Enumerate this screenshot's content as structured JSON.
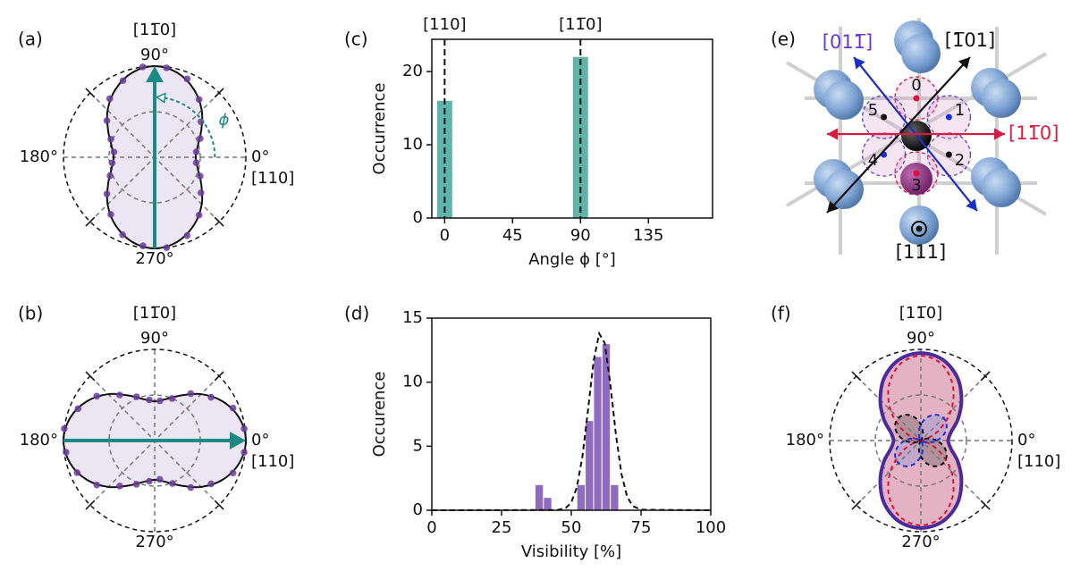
{
  "chart_data": [
    {
      "type": "polar",
      "label": "(a)",
      "xticks": [
        {
          "value": 0,
          "label": "0°"
        },
        {
          "value": 90,
          "label": "90°"
        },
        {
          "value": 180,
          "label": "180°"
        },
        {
          "value": 270,
          "label": "270°"
        }
      ],
      "direction_labels": [
        {
          "value": 0,
          "label": "[110]"
        },
        {
          "value": 90,
          "label": "[11̅0]"
        }
      ],
      "ylim": [
        0,
        1
      ],
      "yticks": [
        0.5,
        1
      ],
      "series": [
        {
          "kind": "line",
          "color": "#111111",
          "fill": "#ece6f4",
          "x": [
            0,
            15,
            30,
            45,
            60,
            75,
            90,
            105,
            120,
            135,
            150,
            165,
            180,
            195,
            210,
            225,
            240,
            255,
            270,
            285,
            300,
            315,
            330,
            345
          ],
          "values": [
            0.45,
            0.49,
            0.59,
            0.73,
            0.86,
            0.96,
            1,
            0.96,
            0.86,
            0.73,
            0.59,
            0.49,
            0.45,
            0.49,
            0.59,
            0.73,
            0.86,
            0.96,
            1,
            0.96,
            0.86,
            0.73,
            0.59,
            0.49
          ]
        },
        {
          "kind": "points",
          "color": "#6a3d9a",
          "x": [
            7.5,
            22.5,
            37.5,
            52.5,
            67.5,
            82.5,
            97.5,
            112.5,
            127.5,
            142.5,
            157.5,
            172.5,
            187.5,
            202.5,
            217.5,
            232.5,
            247.5,
            262.5,
            277.5,
            292.5,
            307.5,
            322.5,
            337.5,
            352.5
          ],
          "values": [
            0.46,
            0.54,
            0.64,
            0.8,
            0.93,
            0.99,
            1.0,
            0.91,
            0.81,
            0.66,
            0.52,
            0.45,
            0.47,
            0.53,
            0.66,
            0.79,
            0.92,
            0.98,
            1.0,
            0.93,
            0.8,
            0.64,
            0.54,
            0.46
          ]
        }
      ],
      "arrow": {
        "angle": 90,
        "color": "#1b8a84"
      },
      "annotation": {
        "text": "ϕ",
        "color": "#1b8a84"
      }
    },
    {
      "type": "polar",
      "label": "(b)",
      "xticks": [
        {
          "value": 0,
          "label": "0°"
        },
        {
          "value": 90,
          "label": "90°"
        },
        {
          "value": 180,
          "label": "180°"
        },
        {
          "value": 270,
          "label": "270°"
        }
      ],
      "direction_labels": [
        {
          "value": 0,
          "label": "[110]"
        },
        {
          "value": 90,
          "label": "[11̅0]"
        }
      ],
      "ylim": [
        0,
        1
      ],
      "yticks": [
        0.5,
        1
      ],
      "series": [
        {
          "kind": "line",
          "color": "#111111",
          "fill": "#ece6f4",
          "x": [
            0,
            15,
            30,
            45,
            60,
            75,
            90,
            105,
            120,
            135,
            150,
            165,
            180,
            195,
            210,
            225,
            240,
            255,
            270,
            285,
            300,
            315,
            330,
            345
          ],
          "values": [
            1,
            0.96,
            0.86,
            0.72,
            0.57,
            0.47,
            0.43,
            0.47,
            0.57,
            0.72,
            0.86,
            0.96,
            1,
            0.96,
            0.86,
            0.72,
            0.57,
            0.47,
            0.43,
            0.47,
            0.57,
            0.72,
            0.86,
            0.96
          ]
        },
        {
          "kind": "points",
          "color": "#6a3d9a",
          "x": [
            7.5,
            22.5,
            37.5,
            52.5,
            67.5,
            82.5,
            97.5,
            112.5,
            127.5,
            142.5,
            157.5,
            172.5,
            187.5,
            202.5,
            217.5,
            232.5,
            247.5,
            262.5,
            277.5,
            292.5,
            307.5,
            322.5,
            337.5,
            352.5
          ],
          "values": [
            0.99,
            0.93,
            0.78,
            0.65,
            0.5,
            0.44,
            0.45,
            0.52,
            0.63,
            0.8,
            0.91,
            1.0,
            0.98,
            0.92,
            0.8,
            0.63,
            0.52,
            0.45,
            0.43,
            0.51,
            0.65,
            0.78,
            0.93,
            0.99
          ]
        }
      ],
      "arrow": {
        "angle": 0,
        "color": "#1b8a84"
      }
    },
    {
      "type": "bar",
      "label": "(c)",
      "xlabel": "Angle ϕ [°]",
      "ylabel": "Occurrence",
      "x": [
        0,
        90
      ],
      "values": [
        16,
        22
      ],
      "color": "#5fb3a8",
      "xlim": [
        -8.5,
        177.5
      ],
      "xticks": [
        0,
        45,
        90,
        135
      ],
      "ylim": [
        0,
        24.4
      ],
      "yticks": [
        0,
        10,
        20
      ],
      "reference_lines": [
        {
          "value": 0,
          "label": "[110]"
        },
        {
          "value": 90,
          "label": "[11̅0]"
        }
      ]
    },
    {
      "type": "histogram",
      "label": "(d)",
      "xlabel": "Visibility [%]",
      "ylabel": "Occurence",
      "bins": [
        37,
        40,
        43,
        46,
        49,
        52,
        55,
        58,
        61,
        64,
        67
      ],
      "values": [
        2,
        1,
        0,
        0,
        0,
        2,
        7,
        12,
        13,
        2
      ],
      "color": "#8e6bbf",
      "fit": {
        "x": [
          0,
          45,
          48,
          50,
          52,
          54,
          56,
          58,
          60,
          62,
          64,
          66,
          68,
          70,
          72,
          75,
          100
        ],
        "values": [
          0,
          0.02,
          0.17,
          0.61,
          1.79,
          4.2,
          7.83,
          11.65,
          13.8,
          13.04,
          9.83,
          5.9,
          2.82,
          1.07,
          0.33,
          0.04,
          0
        ]
      },
      "xlim": [
        0,
        100
      ],
      "xticks": [
        0,
        25,
        50,
        75,
        100
      ],
      "ylim": [
        0,
        15
      ],
      "yticks": [
        0,
        5,
        10,
        15
      ]
    },
    {
      "type": "diagram",
      "label": "(e)",
      "directions": [
        {
          "label": "[011̅]",
          "color": "#1a2fc4",
          "label_color": "#6b35d0"
        },
        {
          "label": "[1̅01]",
          "color": "#111111",
          "label_color": "#111111"
        },
        {
          "label": "[11̅0]",
          "color": "#d81b43",
          "label_color": "#d81b43"
        },
        {
          "label": "[111]",
          "color": "#111111",
          "label_color": "#111111"
        }
      ],
      "sites": [
        "0",
        "1",
        "2",
        "3",
        "4",
        "5"
      ]
    },
    {
      "type": "polar",
      "label": "(f)",
      "xticks": [
        {
          "value": 0,
          "label": "0°"
        },
        {
          "value": 90,
          "label": "90°"
        },
        {
          "value": 180,
          "label": "180°"
        },
        {
          "value": 270,
          "label": "270°"
        }
      ],
      "direction_labels": [
        {
          "value": 0,
          "label": "[110]"
        },
        {
          "value": 90,
          "label": "[11̅0]"
        }
      ],
      "ylim": [
        0,
        1
      ],
      "yticks": [
        0.5,
        1
      ],
      "series": [
        {
          "kind": "line",
          "color": "#4b2a9a",
          "fill": "#e3b3c3",
          "width": 4,
          "x": [
            0,
            15,
            30,
            45,
            60,
            75,
            90,
            105,
            120,
            135,
            150,
            165,
            180,
            195,
            210,
            225,
            240,
            255,
            270,
            285,
            300,
            315,
            330,
            345
          ],
          "values": [
            0.3,
            0.34,
            0.47,
            0.63,
            0.8,
            0.92,
            0.96,
            0.92,
            0.8,
            0.63,
            0.47,
            0.34,
            0.3,
            0.34,
            0.47,
            0.63,
            0.8,
            0.92,
            0.96,
            0.92,
            0.8,
            0.63,
            0.47,
            0.34
          ]
        },
        {
          "kind": "line",
          "color": "#e0103a",
          "dash": true,
          "x": [
            0,
            15,
            30,
            45,
            60,
            75,
            90,
            105,
            120,
            135,
            150,
            165,
            180,
            195,
            210,
            225,
            240,
            255,
            270,
            285,
            300,
            315,
            330,
            345
          ],
          "values": [
            0,
            0.06,
            0.23,
            0.47,
            0.7,
            0.87,
            0.93,
            0.87,
            0.7,
            0.47,
            0.23,
            0.06,
            0,
            0.06,
            0.23,
            0.47,
            0.7,
            0.87,
            0.93,
            0.87,
            0.7,
            0.47,
            0.23,
            0.06
          ]
        },
        {
          "kind": "line",
          "color": "#111111",
          "fill": "rgba(70,70,70,0.3)",
          "dash": true,
          "x": [
            0,
            15,
            30,
            45,
            60,
            75,
            90,
            105,
            120,
            135,
            150,
            165,
            180,
            195,
            210,
            225,
            240,
            255,
            270,
            285,
            300,
            315,
            330,
            345
          ],
          "values": [
            0.175,
            0.088,
            0.023,
            0,
            0.023,
            0.088,
            0.175,
            0.263,
            0.327,
            0.35,
            0.327,
            0.263,
            0.175,
            0.088,
            0.023,
            0,
            0.023,
            0.088,
            0.175,
            0.263,
            0.327,
            0.35,
            0.327,
            0.263
          ]
        },
        {
          "kind": "line",
          "color": "#1a2fe0",
          "fill": "rgba(120,140,230,0.3)",
          "dash": true,
          "x": [
            0,
            15,
            30,
            45,
            60,
            75,
            90,
            105,
            120,
            135,
            150,
            165,
            180,
            195,
            210,
            225,
            240,
            255,
            270,
            285,
            300,
            315,
            330,
            345
          ],
          "values": [
            0.175,
            0.263,
            0.327,
            0.35,
            0.327,
            0.263,
            0.175,
            0.088,
            0.023,
            0,
            0.023,
            0.088,
            0.175,
            0.263,
            0.327,
            0.35,
            0.327,
            0.263,
            0.175,
            0.088,
            0.023,
            0,
            0.023,
            0.088
          ]
        }
      ]
    }
  ]
}
